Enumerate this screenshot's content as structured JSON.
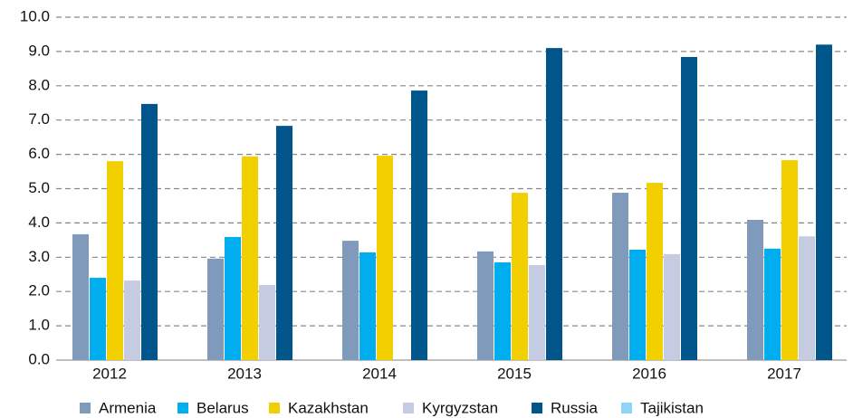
{
  "chart_data": {
    "type": "bar",
    "categories": [
      "2012",
      "2013",
      "2014",
      "2015",
      "2016",
      "2017"
    ],
    "series": [
      {
        "name": "Armenia",
        "color": "#7f9abb",
        "values": [
          3.67,
          2.96,
          3.48,
          3.17,
          4.88,
          4.09
        ]
      },
      {
        "name": "Belarus",
        "color": "#00aeef",
        "values": [
          2.4,
          3.59,
          3.14,
          2.85,
          3.22,
          3.25
        ]
      },
      {
        "name": "Kazakhstan",
        "color": "#f2d000",
        "values": [
          5.8,
          5.94,
          5.96,
          4.88,
          5.17,
          5.83
        ]
      },
      {
        "name": "Kyrgyzstan",
        "color": "#c5cbe0",
        "values": [
          2.32,
          2.19,
          null,
          2.77,
          3.09,
          3.61
        ]
      },
      {
        "name": "Russia",
        "color": "#00558a",
        "values": [
          7.47,
          6.83,
          7.86,
          9.1,
          8.84,
          9.2
        ]
      },
      {
        "name": "Tajikistan",
        "color": "#8fd3f5",
        "values": [
          null,
          null,
          null,
          null,
          null,
          null
        ]
      }
    ],
    "ylim": [
      0,
      10
    ],
    "yticks": [
      {
        "value": 0,
        "label": "0.0"
      },
      {
        "value": 1,
        "label": "1.0"
      },
      {
        "value": 2,
        "label": "2.0"
      },
      {
        "value": 3,
        "label": "3.0"
      },
      {
        "value": 4,
        "label": "4.0"
      },
      {
        "value": 5,
        "label": "5.0"
      },
      {
        "value": 6,
        "label": "6.0"
      },
      {
        "value": 7,
        "label": "7.0"
      },
      {
        "value": 8,
        "label": "8.0"
      },
      {
        "value": 9,
        "label": "9.0"
      },
      {
        "value": 10,
        "label": "10.0"
      }
    ],
    "grid": true,
    "legend": "bottom"
  }
}
